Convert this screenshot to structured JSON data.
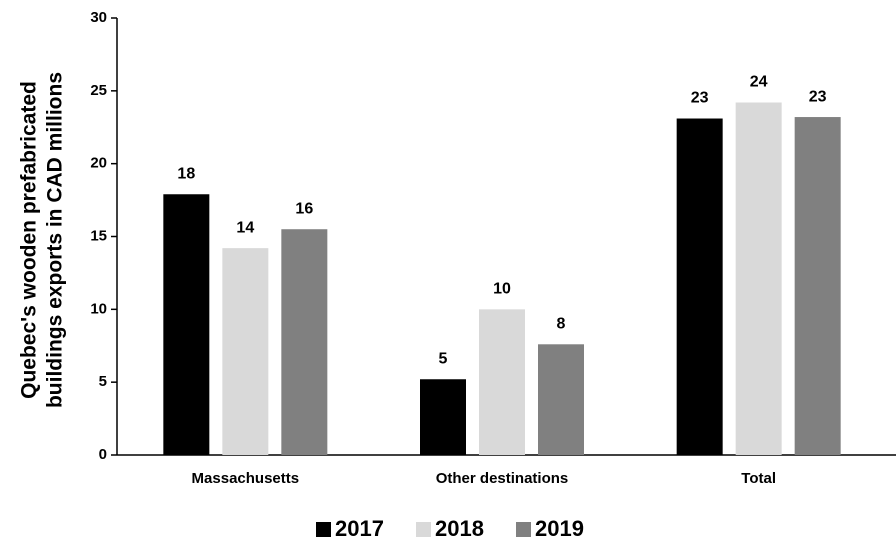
{
  "chart_data": {
    "type": "bar",
    "ylabel": [
      "Quebec's wooden prefabricated",
      "buildings exports in CAD millions"
    ],
    "categories": [
      "Massachusetts",
      "Other destinations",
      "Total"
    ],
    "series": [
      {
        "name": "2017",
        "color": "#000000",
        "values": [
          17.9,
          5.2,
          23.1
        ],
        "value_labels": [
          "18",
          "5",
          "23"
        ]
      },
      {
        "name": "2018",
        "color": "#d9d9d9",
        "values": [
          14.2,
          10.0,
          24.2
        ],
        "value_labels": [
          "14",
          "10",
          "24"
        ]
      },
      {
        "name": "2019",
        "color": "#808080",
        "values": [
          15.5,
          7.6,
          23.2
        ],
        "value_labels": [
          "16",
          "8",
          "23"
        ]
      }
    ],
    "ylim": [
      0,
      30
    ],
    "yticks": [
      0,
      5,
      10,
      15,
      20,
      25,
      30
    ],
    "legend": "bottom"
  }
}
